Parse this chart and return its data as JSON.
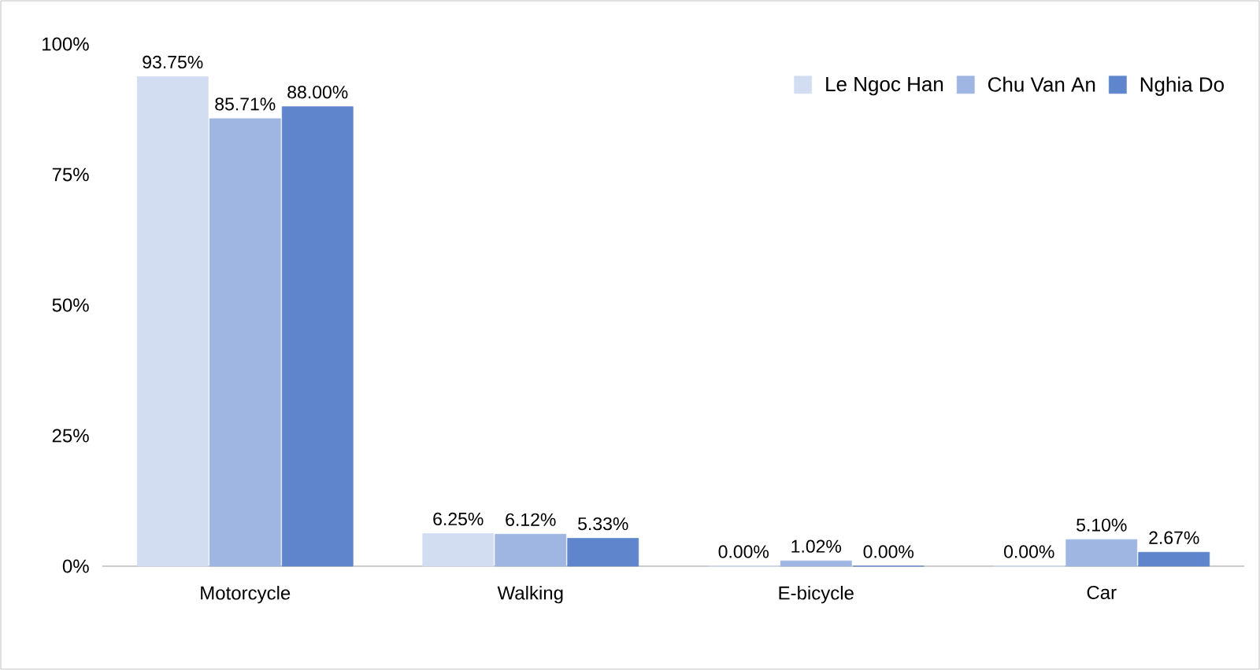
{
  "chart_data": {
    "type": "bar",
    "categories": [
      "Motorcycle",
      "Walking",
      "E-bicycle",
      "Car"
    ],
    "series": [
      {
        "name": "Le Ngoc Han",
        "color": "#d3ddf1",
        "values": [
          93.75,
          6.25,
          0,
          0
        ],
        "value_labels": [
          "93.75%",
          "6.25%",
          "0.00%",
          "0.00%"
        ]
      },
      {
        "name": "Chu Van An",
        "color": "#9fb6e2",
        "values": [
          85.71,
          6.12,
          1.02,
          5.1
        ],
        "value_labels": [
          "85.71%",
          "6.12%",
          "1.02%",
          "5.10%"
        ]
      },
      {
        "name": "Nghia Do",
        "color": "#5f86cc",
        "values": [
          88.0,
          5.33,
          0,
          2.67
        ],
        "value_labels": [
          "88.00%",
          "5.33%",
          "0.00%",
          "2.67%"
        ]
      }
    ],
    "ylim": [
      0,
      100
    ],
    "yticks": [
      {
        "value": 0,
        "label": "0%"
      },
      {
        "value": 25,
        "label": "25%"
      },
      {
        "value": 50,
        "label": "50%"
      },
      {
        "value": 75,
        "label": "75%"
      },
      {
        "value": 100,
        "label": "100%"
      }
    ],
    "grid": false,
    "legend": "top right"
  }
}
